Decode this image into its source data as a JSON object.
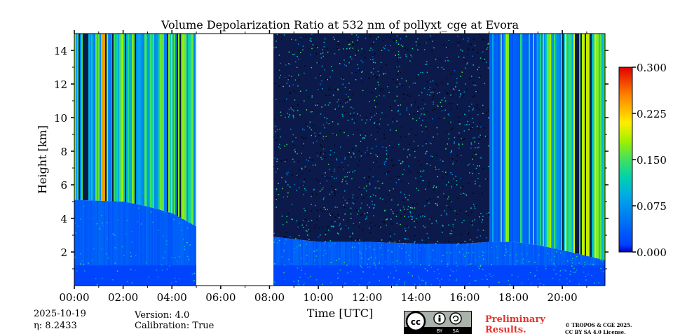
{
  "chart_data": {
    "type": "heatmap",
    "title": "Volume Depolarization Ratio at 532 nm of pollyxt_cge at Evora",
    "xlabel": "Time [UTC]",
    "ylabel": "Height [km]",
    "x_unit": "hours UTC",
    "xlim": [
      0,
      21.75
    ],
    "ylim": [
      0,
      15
    ],
    "xticks": [
      0,
      2,
      4,
      6,
      8,
      10,
      12,
      14,
      16,
      18,
      20
    ],
    "xtick_labels": [
      "00:00",
      "02:00",
      "04:00",
      "06:00",
      "08:00",
      "10:00",
      "12:00",
      "14:00",
      "16:00",
      "18:00",
      "20:00"
    ],
    "yticks": [
      2,
      4,
      6,
      8,
      10,
      12,
      14
    ],
    "ytick_labels": [
      "2",
      "4",
      "6",
      "8",
      "10",
      "12",
      "14"
    ],
    "colorbar": {
      "min": 0.0,
      "max": 0.3,
      "ticks": [
        0.0,
        0.075,
        0.15,
        0.225,
        0.3
      ],
      "tick_labels": [
        "0.000",
        "0.075",
        "0.150",
        "0.225",
        "0.300"
      ],
      "colormap": "jet"
    },
    "data_gaps": [
      {
        "start": 5.0,
        "end": 8.15
      }
    ],
    "boundary_layer_top_km": [
      {
        "t": 0.0,
        "h": 5.1
      },
      {
        "t": 2.0,
        "h": 5.0
      },
      {
        "t": 3.0,
        "h": 4.7
      },
      {
        "t": 4.0,
        "h": 4.3
      },
      {
        "t": 5.0,
        "h": 3.5
      },
      {
        "t": 8.15,
        "h": 2.9
      },
      {
        "t": 10.0,
        "h": 2.6
      },
      {
        "t": 12.0,
        "h": 2.6
      },
      {
        "t": 14.0,
        "h": 2.5
      },
      {
        "t": 16.0,
        "h": 2.5
      },
      {
        "t": 17.0,
        "h": 2.6
      },
      {
        "t": 18.0,
        "h": 2.6
      },
      {
        "t": 19.0,
        "h": 2.4
      },
      {
        "t": 20.0,
        "h": 2.1
      },
      {
        "t": 21.75,
        "h": 1.5
      }
    ]
  },
  "footer": {
    "date": "2025-10-19",
    "eta": "η: 8.2433",
    "version": "Version: 4.0",
    "calibration": "Calibration: True",
    "preliminary_line1": "Preliminary",
    "preliminary_line2": "Results.",
    "license_line1": "© TROPOS & CGE 2025.",
    "license_line2": "CC BY SA 4.0 License.",
    "cc_badge_cc": "cc",
    "cc_badge_by": "BY",
    "cc_badge_sa": "SA"
  },
  "colors": {
    "prelim": "#e8322c"
  }
}
